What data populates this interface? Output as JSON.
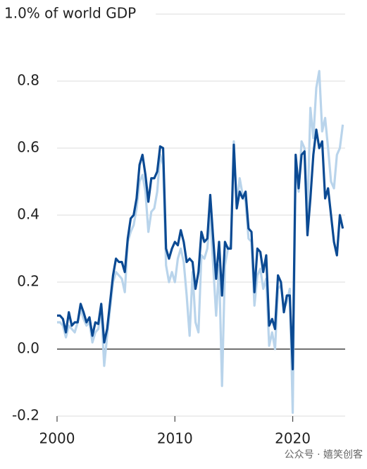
{
  "chart_data": {
    "type": "line",
    "x": [
      2000,
      2000.25,
      2000.5,
      2000.75,
      2001,
      2001.25,
      2001.5,
      2001.75,
      2002,
      2002.25,
      2002.5,
      2002.75,
      2003,
      2003.25,
      2003.5,
      2003.75,
      2004,
      2004.25,
      2004.5,
      2004.75,
      2005,
      2005.25,
      2005.5,
      2005.75,
      2006,
      2006.25,
      2006.5,
      2006.75,
      2007,
      2007.25,
      2007.5,
      2007.75,
      2008,
      2008.25,
      2008.5,
      2008.75,
      2009,
      2009.25,
      2009.5,
      2009.75,
      2010,
      2010.25,
      2010.5,
      2010.75,
      2011,
      2011.25,
      2011.5,
      2011.75,
      2012,
      2012.25,
      2012.5,
      2012.75,
      2013,
      2013.25,
      2013.5,
      2013.75,
      2014,
      2014.25,
      2014.5,
      2014.75,
      2015,
      2015.25,
      2015.5,
      2015.75,
      2016,
      2016.25,
      2016.5,
      2016.75,
      2017,
      2017.25,
      2017.5,
      2017.75,
      2018,
      2018.25,
      2018.5,
      2018.75,
      2019,
      2019.25,
      2019.5,
      2019.75,
      2020,
      2020.25,
      2020.5,
      2020.75,
      2021,
      2021.25,
      2021.5,
      2021.75,
      2022,
      2022.25,
      2022.5,
      2022.75,
      2023,
      2023.25,
      2023.5,
      2023.75,
      2024,
      2024.25
    ],
    "series": [
      {
        "color": "#b9d4eb",
        "values": [
          0.08,
          0.08,
          0.07,
          0.035,
          0.07,
          0.06,
          0.05,
          0.08,
          0.12,
          0.09,
          0.07,
          0.08,
          0.02,
          0.05,
          0.06,
          0.12,
          -0.05,
          0.04,
          0.12,
          0.2,
          0.23,
          0.22,
          0.21,
          0.17,
          0.32,
          0.35,
          0.37,
          0.42,
          0.5,
          0.52,
          0.47,
          0.35,
          0.41,
          0.42,
          0.47,
          0.58,
          0.55,
          0.25,
          0.2,
          0.23,
          0.2,
          0.27,
          0.3,
          0.26,
          0.16,
          0.04,
          0.23,
          0.08,
          0.05,
          0.28,
          0.27,
          0.3,
          0.4,
          0.25,
          0.1,
          0.25,
          -0.11,
          0.25,
          0.3,
          0.31,
          0.62,
          0.43,
          0.51,
          0.46,
          0.44,
          0.33,
          0.32,
          0.13,
          0.22,
          0.24,
          0.18,
          0.21,
          0.01,
          0.05,
          0.0,
          0.18,
          0.19,
          0.12,
          0.14,
          0.18,
          -0.19,
          0.56,
          0.47,
          0.62,
          0.6,
          0.4,
          0.72,
          0.63,
          0.78,
          0.83,
          0.65,
          0.69,
          0.6,
          0.5,
          0.48,
          0.58,
          0.6,
          0.67
        ]
      },
      {
        "color": "#0b4a93",
        "values": [
          0.1,
          0.1,
          0.09,
          0.05,
          0.11,
          0.07,
          0.08,
          0.08,
          0.135,
          0.11,
          0.08,
          0.095,
          0.04,
          0.08,
          0.075,
          0.135,
          0.02,
          0.06,
          0.14,
          0.22,
          0.27,
          0.26,
          0.26,
          0.23,
          0.33,
          0.39,
          0.4,
          0.45,
          0.55,
          0.58,
          0.52,
          0.44,
          0.51,
          0.51,
          0.53,
          0.605,
          0.6,
          0.3,
          0.27,
          0.3,
          0.32,
          0.31,
          0.355,
          0.32,
          0.26,
          0.27,
          0.26,
          0.18,
          0.23,
          0.35,
          0.32,
          0.33,
          0.46,
          0.33,
          0.21,
          0.32,
          0.16,
          0.32,
          0.3,
          0.3,
          0.61,
          0.42,
          0.47,
          0.45,
          0.47,
          0.36,
          0.35,
          0.17,
          0.3,
          0.29,
          0.23,
          0.28,
          0.07,
          0.09,
          0.06,
          0.22,
          0.2,
          0.11,
          0.16,
          0.16,
          -0.06,
          0.58,
          0.48,
          0.58,
          0.59,
          0.34,
          0.45,
          0.58,
          0.655,
          0.6,
          0.62,
          0.45,
          0.48,
          0.4,
          0.32,
          0.28,
          0.4,
          0.36
        ]
      }
    ],
    "xlim": [
      2000,
      2024.45
    ],
    "xticks": [
      2000,
      2010,
      2020
    ],
    "ylim": [
      -0.2,
      1.0
    ],
    "yticks": [
      {
        "value": -0.2,
        "label": "-0.2"
      },
      {
        "value": 0,
        "label": "0.0"
      },
      0.2,
      0.4,
      0.6,
      0.8,
      {
        "value": 1.0,
        "label": "1.0% of world GDP"
      }
    ],
    "grid": true,
    "watermark": "公众号 · 嬉笑创客"
  }
}
